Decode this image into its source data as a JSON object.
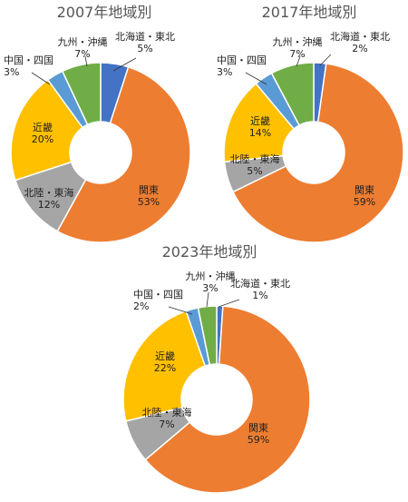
{
  "chart_data": [
    {
      "type": "pie",
      "title": "2007年地域別",
      "slices": [
        {
          "label": "北海道・東北",
          "value": 5,
          "pct": "5%",
          "color": "#4472C4"
        },
        {
          "label": "関東",
          "value": 53,
          "pct": "53%",
          "color": "#ED7D31"
        },
        {
          "label": "北陸・東海",
          "value": 12,
          "pct": "12%",
          "color": "#A5A5A5"
        },
        {
          "label": "近畿",
          "value": 20,
          "pct": "20%",
          "color": "#FFC000"
        },
        {
          "label": "中国・四国",
          "value": 3,
          "pct": "3%",
          "color": "#5B9BD5"
        },
        {
          "label": "九州・沖縄",
          "value": 7,
          "pct": "7%",
          "color": "#70AD47"
        }
      ]
    },
    {
      "type": "pie",
      "title": "2017年地域別",
      "slices": [
        {
          "label": "北海道・東北",
          "value": 2,
          "pct": "2%",
          "color": "#4472C4"
        },
        {
          "label": "関東",
          "value": 59,
          "pct": "59%",
          "color": "#ED7D31"
        },
        {
          "label": "北陸・東海",
          "value": 5,
          "pct": "5%",
          "color": "#A5A5A5"
        },
        {
          "label": "近畿",
          "value": 14,
          "pct": "14%",
          "color": "#FFC000"
        },
        {
          "label": "中国・四国",
          "value": 3,
          "pct": "3%",
          "color": "#5B9BD5"
        },
        {
          "label": "九州・沖縄",
          "value": 7,
          "pct": "7%",
          "color": "#70AD47"
        }
      ]
    },
    {
      "type": "pie",
      "title": "2023年地域別",
      "slices": [
        {
          "label": "北海道・東北",
          "value": 1,
          "pct": "1%",
          "color": "#4472C4"
        },
        {
          "label": "関東",
          "value": 59,
          "pct": "59%",
          "color": "#ED7D31"
        },
        {
          "label": "北陸・東海",
          "value": 7,
          "pct": "7%",
          "color": "#A5A5A5"
        },
        {
          "label": "近畿",
          "value": 22,
          "pct": "22%",
          "color": "#FFC000"
        },
        {
          "label": "中国・四国",
          "value": 2,
          "pct": "2%",
          "color": "#5B9BD5"
        },
        {
          "label": "九州・沖縄",
          "value": 3,
          "pct": "3%",
          "color": "#70AD47"
        }
      ]
    }
  ]
}
